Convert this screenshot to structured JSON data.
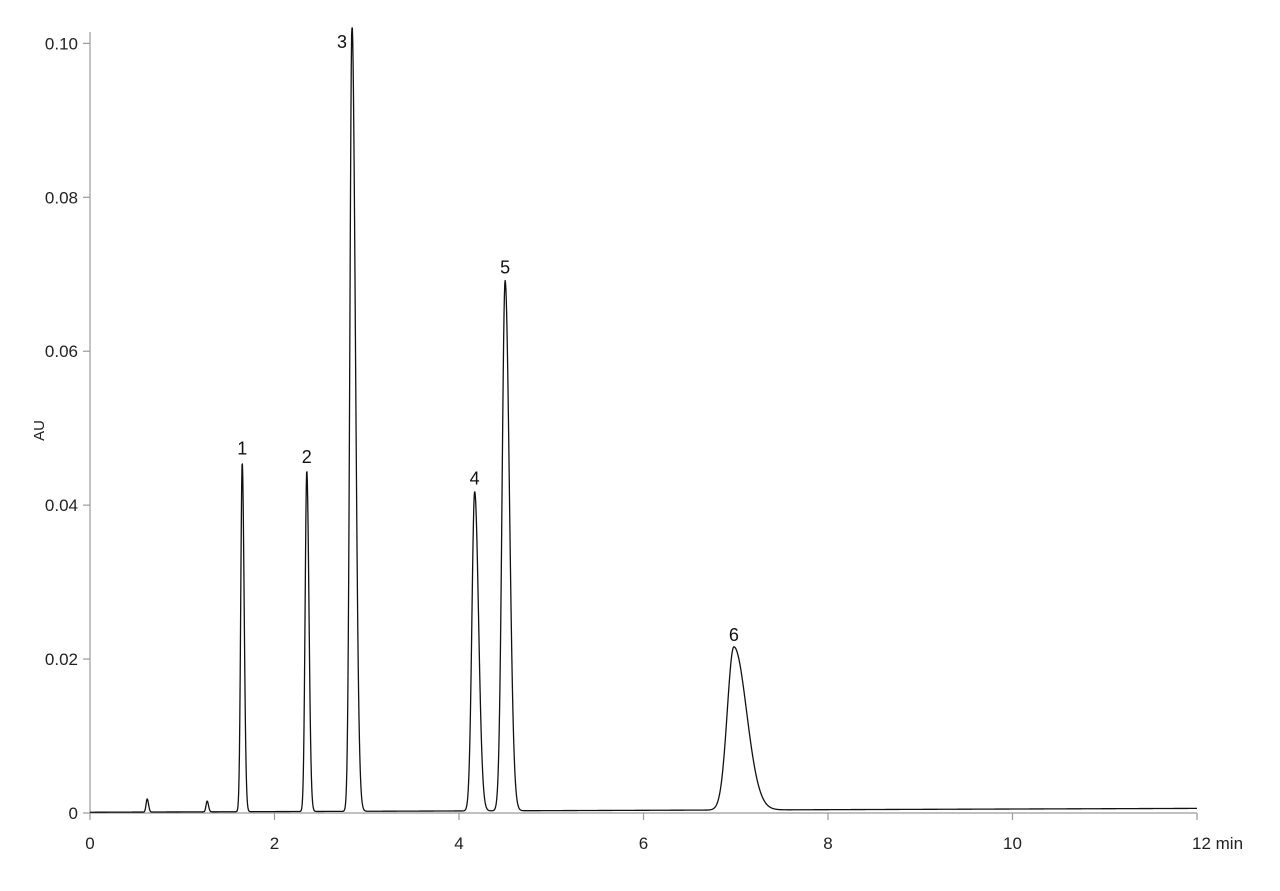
{
  "chart_data": {
    "type": "line",
    "title": "",
    "xlabel": "min",
    "ylabel": "AU",
    "xlim": [
      0,
      12
    ],
    "ylim": [
      0,
      0.102
    ],
    "grid": false,
    "x_ticks": [
      {
        "value": 0,
        "label": "0"
      },
      {
        "value": 2,
        "label": "2"
      },
      {
        "value": 4,
        "label": "4"
      },
      {
        "value": 6,
        "label": "6"
      },
      {
        "value": 8,
        "label": "8"
      },
      {
        "value": 10,
        "label": "10"
      },
      {
        "value": 12,
        "label": "12 min"
      }
    ],
    "y_ticks": [
      {
        "value": 0,
        "label": "0"
      },
      {
        "value": 0.02,
        "label": "0.02"
      },
      {
        "value": 0.04,
        "label": "0.04"
      },
      {
        "value": 0.06,
        "label": "0.06"
      },
      {
        "value": 0.08,
        "label": "0.08"
      },
      {
        "value": 0.1,
        "label": "0.10"
      }
    ],
    "baseline": {
      "start": 0.0001,
      "end": 0.0006
    },
    "minor_peaks": [
      {
        "x": 0.62,
        "height": 0.0017
      },
      {
        "x": 1.27,
        "height": 0.0014
      }
    ],
    "peaks": [
      {
        "label": "1",
        "x": 1.65,
        "height": 0.0454
      },
      {
        "label": "2",
        "x": 2.35,
        "height": 0.0443
      },
      {
        "label": "3",
        "x": 2.84,
        "height": 0.1025
      },
      {
        "label": "4",
        "x": 4.17,
        "height": 0.0415
      },
      {
        "label": "5",
        "x": 4.5,
        "height": 0.0689
      },
      {
        "label": "6",
        "x": 6.98,
        "height": 0.0212
      }
    ]
  }
}
